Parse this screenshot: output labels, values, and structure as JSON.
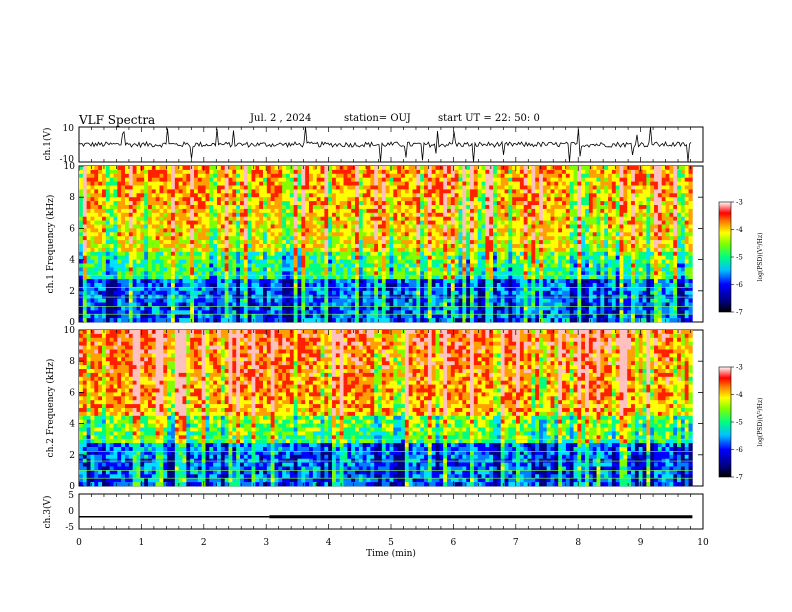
{
  "header": {
    "title": "VLF Spectra",
    "date": "Jul. 2 , 2024",
    "station": "station= OUJ",
    "start": "start UT = 22: 50: 0"
  },
  "chart_data": [
    {
      "type": "line",
      "panel": "ch1-waveform",
      "ylabel": "ch.1(V)",
      "ylim": [
        -10,
        10
      ],
      "yticks": [
        "10",
        "-10"
      ],
      "xlim": [
        0,
        10
      ],
      "baseline_value": 0,
      "color": "#000000"
    },
    {
      "type": "heatmap",
      "panel": "ch1-spectrogram",
      "ylabel": "ch.1 Frequency (kHz)",
      "ylim": [
        0,
        10
      ],
      "yticks": [
        "0",
        "2",
        "4",
        "6",
        "8",
        "10"
      ],
      "xlim": [
        0,
        9.83
      ],
      "colorbar": {
        "label": "log(PSD)(V²/Hz)",
        "range": [
          -7,
          -3
        ],
        "ticks": [
          "-3",
          "-4",
          "-5",
          "-6",
          "-7"
        ]
      }
    },
    {
      "type": "heatmap",
      "panel": "ch2-spectrogram",
      "ylabel": "ch.2 Frequency (kHz)",
      "ylim": [
        0,
        10
      ],
      "yticks": [
        "0",
        "2",
        "4",
        "6",
        "8",
        "10"
      ],
      "xlim": [
        0,
        9.83
      ],
      "colorbar": {
        "label": "log(PSD)(V²/Hz)",
        "range": [
          -7,
          -3
        ],
        "ticks": [
          "-3",
          "-4",
          "-5",
          "-6",
          "-7"
        ]
      }
    },
    {
      "type": "line",
      "panel": "ch3-trace",
      "ylabel": "ch.3(V)",
      "ylim": [
        -5,
        5
      ],
      "yticks": [
        "5",
        "0",
        "-5"
      ],
      "xlim": [
        0,
        10
      ],
      "series": [
        {
          "x": [
            0,
            3.05
          ],
          "y": [
            -1.5,
            -1.5
          ]
        },
        {
          "x": [
            3.05,
            9.83
          ],
          "y": [
            -1.5,
            -1.5
          ]
        }
      ]
    }
  ],
  "x_axis": {
    "label": "Time (min)",
    "ticks": [
      "0",
      "1",
      "2",
      "3",
      "4",
      "5",
      "6",
      "7",
      "8",
      "9",
      "10"
    ]
  },
  "colors": {
    "colormap": [
      "#000080",
      "#0000ff",
      "#0080ff",
      "#00e0ff",
      "#00ff80",
      "#80ff00",
      "#ffff00",
      "#ffa000",
      "#ff2000",
      "#ffc0c0"
    ]
  }
}
